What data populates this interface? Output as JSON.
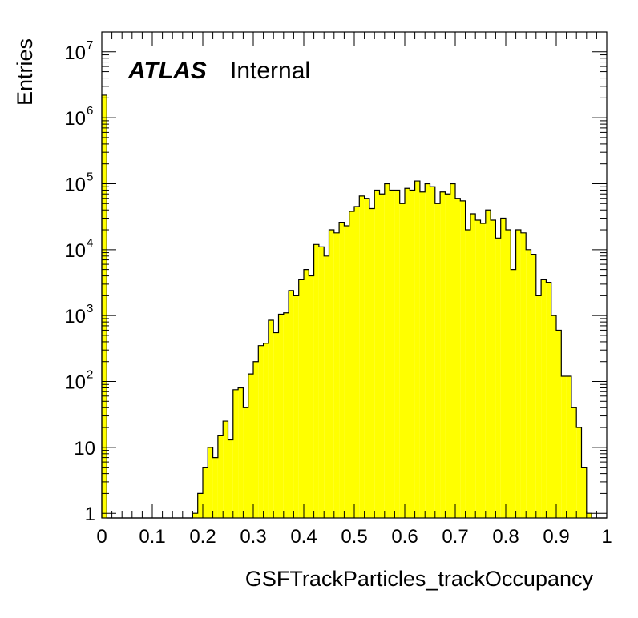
{
  "chart_data": {
    "type": "histogram",
    "xlabel": "GSFTrackParticles_trackOccupancy",
    "ylabel": "Entries",
    "xlim": [
      0,
      1
    ],
    "ylim": [
      0.85,
      20000000
    ],
    "log_y": true,
    "fill_color": "#ffff00",
    "line_color": "#000000",
    "labels": {
      "atlas": "ATLAS",
      "status": "Internal"
    },
    "x_ticks": [
      "0",
      "0.1",
      "0.2",
      "0.3",
      "0.4",
      "0.5",
      "0.6",
      "0.7",
      "0.8",
      "0.9",
      "1"
    ],
    "y_ticks": [
      {
        "base": "1",
        "exp": ""
      },
      {
        "base": "10",
        "exp": ""
      },
      {
        "base": "10",
        "exp": "2"
      },
      {
        "base": "10",
        "exp": "3"
      },
      {
        "base": "10",
        "exp": "4"
      },
      {
        "base": "10",
        "exp": "5"
      },
      {
        "base": "10",
        "exp": "6"
      },
      {
        "base": "10",
        "exp": "7"
      }
    ],
    "bin_edges_start": 0.0,
    "bin_width": 0.01,
    "values": [
      2200000,
      0,
      0,
      0,
      0,
      0,
      0,
      0,
      0,
      0,
      0,
      0,
      0,
      0,
      0,
      0,
      0,
      0,
      1,
      2,
      5,
      10,
      7,
      15,
      25,
      13,
      75,
      80,
      40,
      130,
      200,
      350,
      380,
      850,
      550,
      1050,
      1100,
      2400,
      2000,
      3500,
      5000,
      4000,
      12000,
      11000,
      8000,
      20000,
      18000,
      26000,
      23000,
      38000,
      45000,
      65000,
      60000,
      42000,
      80000,
      70000,
      100000,
      80000,
      80000,
      50000,
      85000,
      80000,
      110000,
      75000,
      100000,
      90000,
      50000,
      75000,
      70000,
      100000,
      60000,
      55000,
      20000,
      35000,
      28000,
      25000,
      40000,
      28000,
      15000,
      30000,
      20000,
      5000,
      20000,
      18000,
      10000,
      8500,
      2000,
      3500,
      3200,
      1000,
      600,
      120,
      120,
      40,
      20,
      5,
      1,
      0,
      0,
      0
    ]
  }
}
